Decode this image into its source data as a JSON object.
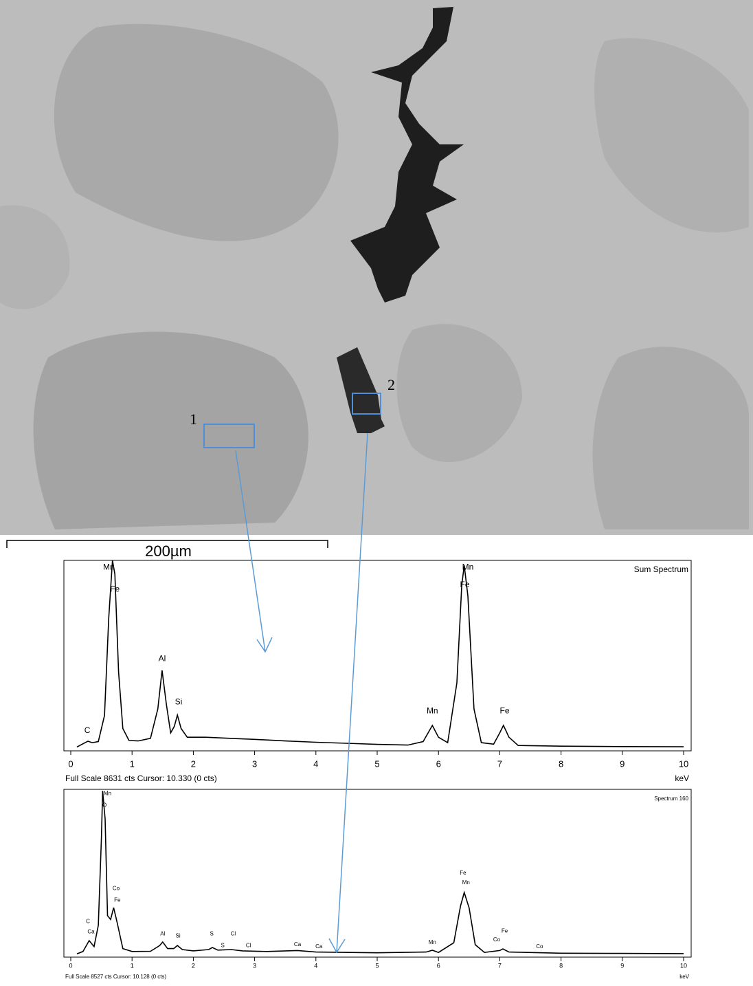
{
  "image": {
    "labels": [
      "1",
      "2"
    ],
    "scale_bar": "200µm"
  },
  "chart_data": [
    {
      "type": "line",
      "title": "Sum Spectrum",
      "footer": "Full Scale 8631 cts Cursor: 10.330  (0 cts)",
      "x_label": "keV",
      "color": "#000000",
      "xlim": [
        0,
        10
      ],
      "ylim": [
        0,
        8631
      ],
      "xticks": [
        0,
        1,
        2,
        3,
        4,
        5,
        6,
        7,
        8,
        9,
        10
      ],
      "x": [
        0.1,
        0.2,
        0.28,
        0.35,
        0.45,
        0.55,
        0.62,
        0.68,
        0.72,
        0.78,
        0.85,
        0.95,
        1.1,
        1.3,
        1.42,
        1.49,
        1.56,
        1.63,
        1.69,
        1.74,
        1.8,
        1.9,
        2.2,
        2.6,
        3.0,
        3.5,
        4.0,
        4.5,
        5.0,
        5.5,
        5.75,
        5.9,
        6.0,
        6.15,
        6.3,
        6.38,
        6.42,
        6.48,
        6.58,
        6.7,
        6.9,
        7.0,
        7.06,
        7.15,
        7.3,
        8.0,
        9.0,
        10.0
      ],
      "values": [
        50,
        200,
        316,
        250,
        300,
        1500,
        6000,
        8631,
        8000,
        3500,
        900,
        350,
        330,
        450,
        1800,
        3573,
        2000,
        700,
        1000,
        1518,
        900,
        500,
        500,
        450,
        400,
        330,
        270,
        220,
        170,
        140,
        300,
        1043,
        500,
        250,
        3000,
        7500,
        8400,
        7000,
        1800,
        250,
        180,
        700,
        1043,
        500,
        120,
        90,
        70,
        60
      ],
      "annotations": [
        {
          "text": "Mn",
          "x": 0.62,
          "y": 8300
        },
        {
          "text": "Fe",
          "x": 0.72,
          "y": 7300
        },
        {
          "text": "Al",
          "x": 1.49,
          "y": 4100
        },
        {
          "text": "Si",
          "x": 1.76,
          "y": 2100
        },
        {
          "text": "C",
          "x": 0.27,
          "y": 800
        },
        {
          "text": "Mn",
          "x": 5.9,
          "y": 1700
        },
        {
          "text": "Mn",
          "x": 6.48,
          "y": 8300
        },
        {
          "text": "Fe",
          "x": 6.43,
          "y": 7500
        },
        {
          "text": "Fe",
          "x": 7.08,
          "y": 1700
        }
      ]
    },
    {
      "type": "line",
      "title": "Spectrum 160",
      "footer": "Full Scale 8527 cts Cursor: 10.128  (0 cts)",
      "x_label": "keV",
      "color": "#000000",
      "xlim": [
        0,
        10
      ],
      "ylim": [
        0,
        8527
      ],
      "xticks": [
        0,
        1,
        2,
        3,
        4,
        5,
        6,
        7,
        8,
        9,
        10
      ],
      "x": [
        0.1,
        0.2,
        0.3,
        0.38,
        0.45,
        0.5,
        0.52,
        0.56,
        0.6,
        0.65,
        0.7,
        0.76,
        0.85,
        1.0,
        1.3,
        1.45,
        1.5,
        1.58,
        1.68,
        1.74,
        1.82,
        2.0,
        2.25,
        2.31,
        2.4,
        2.62,
        2.8,
        3.2,
        3.7,
        4.0,
        5.0,
        5.8,
        5.9,
        6.0,
        6.25,
        6.36,
        6.42,
        6.5,
        6.6,
        6.75,
        7.0,
        7.05,
        7.15,
        8.0,
        9.0,
        10.0
      ],
      "values": [
        30,
        150,
        710,
        400,
        1500,
        6000,
        8450,
        7000,
        2000,
        1800,
        2416,
        1600,
        300,
        150,
        160,
        450,
        640,
        300,
        300,
        460,
        250,
        180,
        250,
        355,
        220,
        250,
        180,
        150,
        200,
        120,
        80,
        120,
        213,
        100,
        600,
        2500,
        3198,
        2400,
        500,
        100,
        200,
        284,
        120,
        60,
        50,
        40
      ],
      "annotations": [
        {
          "text": "Mn",
          "x": 0.6,
          "y": 8300
        },
        {
          "text": "O",
          "x": 0.55,
          "y": 7700
        },
        {
          "text": "Co",
          "x": 0.74,
          "y": 3400
        },
        {
          "text": "Fe",
          "x": 0.76,
          "y": 2800
        },
        {
          "text": "C",
          "x": 0.28,
          "y": 1700
        },
        {
          "text": "Ca",
          "x": 0.33,
          "y": 1150
        },
        {
          "text": "Al",
          "x": 1.5,
          "y": 1050
        },
        {
          "text": "Si",
          "x": 1.75,
          "y": 950
        },
        {
          "text": "S",
          "x": 2.3,
          "y": 1050
        },
        {
          "text": "S",
          "x": 2.48,
          "y": 450
        },
        {
          "text": "Cl",
          "x": 2.65,
          "y": 1050
        },
        {
          "text": "Cl",
          "x": 2.9,
          "y": 450
        },
        {
          "text": "Ca",
          "x": 3.7,
          "y": 500
        },
        {
          "text": "Ca",
          "x": 4.05,
          "y": 400
        },
        {
          "text": "Mn",
          "x": 5.9,
          "y": 600
        },
        {
          "text": "Fe",
          "x": 6.4,
          "y": 4200
        },
        {
          "text": "Mn",
          "x": 6.45,
          "y": 3700
        },
        {
          "text": "Co",
          "x": 6.95,
          "y": 750
        },
        {
          "text": "Fe",
          "x": 7.08,
          "y": 1200
        },
        {
          "text": "Co",
          "x": 7.65,
          "y": 400
        }
      ]
    }
  ]
}
